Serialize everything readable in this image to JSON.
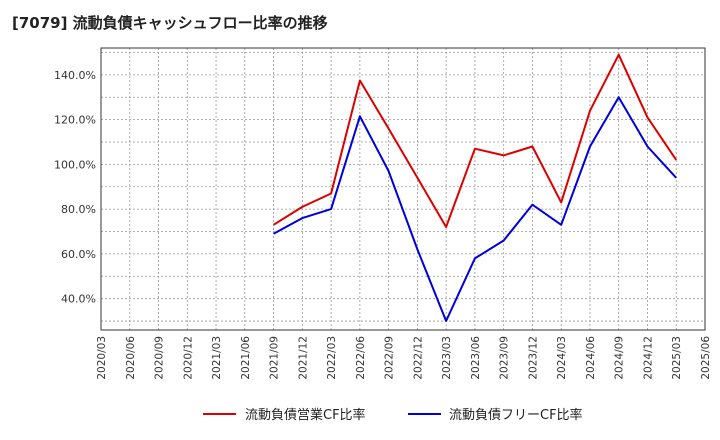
{
  "title": "[7079]  流動負債キャッシュフロー比率の推移",
  "chart_data": {
    "type": "line",
    "title": "[7079]  流動負債キャッシュフロー比率の推移",
    "x": [
      "2020/03",
      "2020/06",
      "2020/09",
      "2020/12",
      "2021/03",
      "2021/06",
      "2021/09",
      "2021/12",
      "2022/03",
      "2022/06",
      "2022/09",
      "2022/12",
      "2023/03",
      "2023/06",
      "2023/09",
      "2023/12",
      "2024/03",
      "2024/06",
      "2024/09",
      "2024/12",
      "2025/03",
      "2025/06"
    ],
    "yticks": [
      "40.0%",
      "60.0%",
      "80.0%",
      "100.0%",
      "120.0%",
      "140.0%"
    ],
    "ytick_values": [
      40,
      60,
      80,
      100,
      120,
      140
    ],
    "ylim": [
      26,
      152
    ],
    "grid": true,
    "legend_position": "bottom",
    "series": [
      {
        "name": "流動負債営業CF比率",
        "color": "#dd0000",
        "points": [
          [
            "2021/09",
            73
          ],
          [
            "2021/12",
            81
          ],
          [
            "2022/03",
            87
          ],
          [
            "2022/06",
            137.5
          ],
          [
            "2022/09",
            116
          ],
          [
            "2022/12",
            94
          ],
          [
            "2023/03",
            72
          ],
          [
            "2023/06",
            107
          ],
          [
            "2023/09",
            104
          ],
          [
            "2023/12",
            108
          ],
          [
            "2024/03",
            83
          ],
          [
            "2024/06",
            124
          ],
          [
            "2024/09",
            149
          ],
          [
            "2024/12",
            121
          ],
          [
            "2025/03",
            102
          ]
        ]
      },
      {
        "name": "流動負債フリーCF比率",
        "color": "#0000dd",
        "points": [
          [
            "2021/09",
            69
          ],
          [
            "2021/12",
            76
          ],
          [
            "2022/03",
            80
          ],
          [
            "2022/06",
            121.5
          ],
          [
            "2022/09",
            97
          ],
          [
            "2022/12",
            62
          ],
          [
            "2023/03",
            30
          ],
          [
            "2023/06",
            58
          ],
          [
            "2023/09",
            66
          ],
          [
            "2023/12",
            82
          ],
          [
            "2024/03",
            73
          ],
          [
            "2024/06",
            108
          ],
          [
            "2024/09",
            130
          ],
          [
            "2024/12",
            108
          ],
          [
            "2025/03",
            94
          ]
        ]
      }
    ]
  }
}
